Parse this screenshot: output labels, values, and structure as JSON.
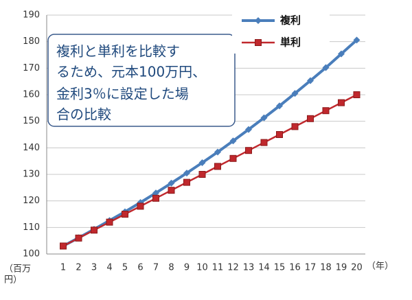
{
  "chart_data": {
    "type": "line",
    "categories": [
      "1",
      "2",
      "3",
      "4",
      "5",
      "6",
      "7",
      "8",
      "9",
      "10",
      "11",
      "12",
      "13",
      "14",
      "15",
      "16",
      "17",
      "18",
      "19",
      "20"
    ],
    "series": [
      {
        "name": "複利",
        "color": "#4a7ebb",
        "marker": "diamond",
        "values": [
          103,
          106.1,
          109.3,
          112.6,
          115.9,
          119.4,
          123,
          126.7,
          130.5,
          134.4,
          138.4,
          142.6,
          146.9,
          151.3,
          155.8,
          160.5,
          165.3,
          170.2,
          175.4,
          180.6
        ]
      },
      {
        "name": "単利",
        "color": "#c0282d",
        "marker": "square",
        "values": [
          103,
          106,
          109,
          112,
          115,
          118,
          121,
          124,
          127,
          130,
          133,
          136,
          139,
          142,
          145,
          148,
          151,
          154,
          157,
          160
        ]
      }
    ],
    "ylim": [
      100,
      190
    ],
    "yticks": [
      100,
      110,
      120,
      130,
      140,
      150,
      160,
      170,
      180,
      190
    ],
    "grid": true,
    "y_label": [
      "（百万",
      "円）"
    ],
    "x_label": "（年）",
    "annotation": [
      "複利と単利を比較す",
      "るため、元本100万円、",
      "金利3％に設定した場",
      "合の比較"
    ],
    "legend": "top-right"
  }
}
